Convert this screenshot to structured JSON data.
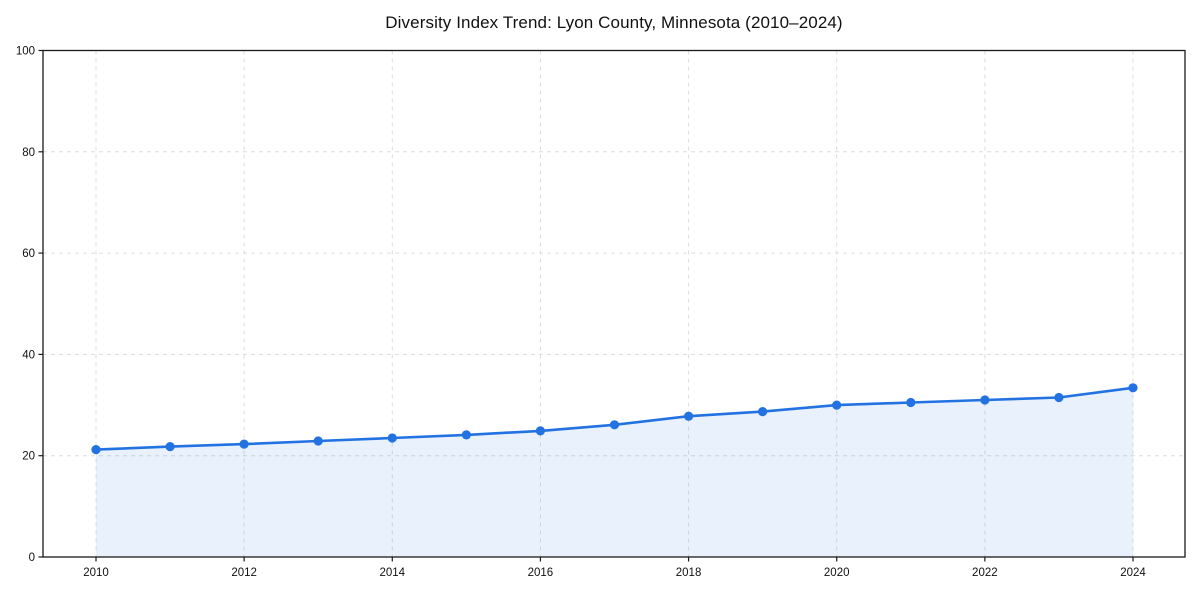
{
  "chart_data": {
    "type": "line",
    "title": "Diversity Index Trend: Lyon County, Minnesota (2010–2024)",
    "x": [
      2010,
      2011,
      2012,
      2013,
      2014,
      2015,
      2016,
      2017,
      2018,
      2019,
      2020,
      2021,
      2022,
      2023,
      2024
    ],
    "series": [
      {
        "name": "Diversity Index",
        "values": [
          21.2,
          21.8,
          22.3,
          22.9,
          23.5,
          24.1,
          24.9,
          26.1,
          27.8,
          28.7,
          30.0,
          30.5,
          31.0,
          31.5,
          33.4
        ]
      }
    ],
    "xlabel": "",
    "ylabel": "",
    "xtick_labels": [
      "2010",
      "2012",
      "2014",
      "2016",
      "2018",
      "2020",
      "2022",
      "2024"
    ],
    "xticks": [
      2010,
      2012,
      2014,
      2016,
      2018,
      2020,
      2022,
      2024
    ],
    "ytick_labels": [
      "0",
      "20",
      "40",
      "60",
      "80",
      "100"
    ],
    "yticks": [
      0,
      20,
      40,
      60,
      80,
      100
    ],
    "ylim": [
      0,
      100
    ],
    "grid": true,
    "grid_style": "dashed",
    "legend_position": "none",
    "colors": {
      "line": "#2272e2",
      "marker": "#2272e2",
      "area_fill": "rgba(34,114,226,0.10)",
      "gridline": "#dddddd",
      "spine": "#1a1a1a",
      "tick_label": "#111111"
    }
  }
}
